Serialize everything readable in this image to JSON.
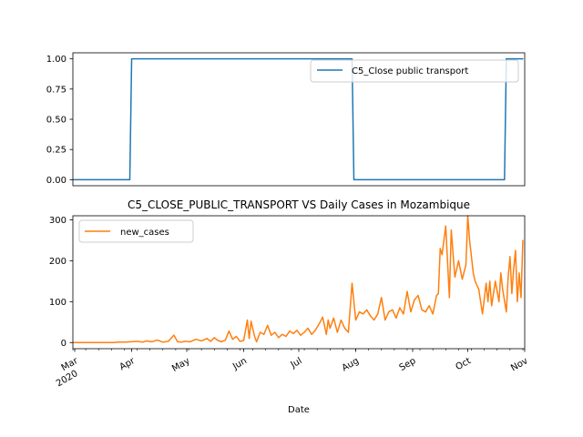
{
  "chart_data": [
    {
      "type": "line",
      "title": "",
      "xlabel": "",
      "ylabel": "",
      "ylim": [
        -0.05,
        1.05
      ],
      "yticks": [
        "0.00",
        "0.25",
        "0.50",
        "0.75",
        "1.00"
      ],
      "legend_position": "upper right",
      "color": "#1f77b4",
      "series": [
        {
          "name": "C5_Close public transport",
          "x": [
            "2020-02-29",
            "2020-03-31",
            "2020-04-01",
            "2020-07-30",
            "2020-07-31",
            "2020-10-21",
            "2020-10-22",
            "2020-10-31"
          ],
          "y": [
            0,
            0,
            1,
            1,
            0,
            0,
            1,
            1
          ]
        }
      ]
    },
    {
      "type": "line",
      "title": "C5_CLOSE_PUBLIC_TRANSPORT VS Daily Cases in Mozambique",
      "xlabel": "Date",
      "ylabel": "",
      "ylim": [
        -15,
        310
      ],
      "yticks": [
        "0",
        "100",
        "200",
        "300"
      ],
      "xtick_labels": [
        {
          "month": "Mar",
          "year": "2020"
        },
        {
          "month": "Apr",
          "year": ""
        },
        {
          "month": "May",
          "year": ""
        },
        {
          "month": "Jun",
          "year": ""
        },
        {
          "month": "Jul",
          "year": ""
        },
        {
          "month": "Aug",
          "year": ""
        },
        {
          "month": "Sep",
          "year": ""
        },
        {
          "month": "Oct",
          "year": ""
        },
        {
          "month": "Nov",
          "year": ""
        }
      ],
      "legend_position": "upper left",
      "color": "#ff7f0e",
      "series": [
        {
          "name": "new_cases",
          "x": [
            "2020-02-29",
            "2020-03-22",
            "2020-03-25",
            "2020-03-28",
            "2020-04-01",
            "2020-04-04",
            "2020-04-07",
            "2020-04-09",
            "2020-04-12",
            "2020-04-15",
            "2020-04-18",
            "2020-04-21",
            "2020-04-24",
            "2020-04-26",
            "2020-04-28",
            "2020-04-30",
            "2020-05-03",
            "2020-05-06",
            "2020-05-09",
            "2020-05-12",
            "2020-05-14",
            "2020-05-16",
            "2020-05-18",
            "2020-05-20",
            "2020-05-22",
            "2020-05-24",
            "2020-05-26",
            "2020-05-28",
            "2020-05-30",
            "2020-06-01",
            "2020-06-03",
            "2020-06-04",
            "2020-06-05",
            "2020-06-07",
            "2020-06-08",
            "2020-06-10",
            "2020-06-12",
            "2020-06-14",
            "2020-06-16",
            "2020-06-18",
            "2020-06-20",
            "2020-06-22",
            "2020-06-24",
            "2020-06-26",
            "2020-06-28",
            "2020-06-30",
            "2020-07-02",
            "2020-07-04",
            "2020-07-06",
            "2020-07-08",
            "2020-07-10",
            "2020-07-12",
            "2020-07-14",
            "2020-07-16",
            "2020-07-17",
            "2020-07-18",
            "2020-07-20",
            "2020-07-22",
            "2020-07-24",
            "2020-07-26",
            "2020-07-28",
            "2020-07-30",
            "2020-08-01",
            "2020-08-03",
            "2020-08-05",
            "2020-08-07",
            "2020-08-09",
            "2020-08-11",
            "2020-08-13",
            "2020-08-15",
            "2020-08-17",
            "2020-08-19",
            "2020-08-21",
            "2020-08-23",
            "2020-08-25",
            "2020-08-27",
            "2020-08-29",
            "2020-08-31",
            "2020-09-02",
            "2020-09-04",
            "2020-09-06",
            "2020-09-08",
            "2020-09-10",
            "2020-09-12",
            "2020-09-14",
            "2020-09-15",
            "2020-09-16",
            "2020-09-17",
            "2020-09-19",
            "2020-09-21",
            "2020-09-22",
            "2020-09-24",
            "2020-09-26",
            "2020-09-28",
            "2020-09-30",
            "2020-10-01",
            "2020-10-02",
            "2020-10-04",
            "2020-10-05",
            "2020-10-07",
            "2020-10-09",
            "2020-10-11",
            "2020-10-12",
            "2020-10-13",
            "2020-10-14",
            "2020-10-16",
            "2020-10-18",
            "2020-10-19",
            "2020-10-20",
            "2020-10-22",
            "2020-10-23",
            "2020-10-24",
            "2020-10-25",
            "2020-10-26",
            "2020-10-27",
            "2020-10-28",
            "2020-10-29",
            "2020-10-30",
            "2020-10-31"
          ],
          "y": [
            0,
            0,
            1,
            1,
            2,
            3,
            1,
            4,
            2,
            6,
            1,
            3,
            18,
            2,
            1,
            3,
            2,
            8,
            4,
            10,
            3,
            12,
            5,
            2,
            6,
            28,
            8,
            15,
            3,
            5,
            55,
            10,
            52,
            14,
            2,
            25,
            20,
            42,
            18,
            25,
            12,
            20,
            15,
            28,
            22,
            30,
            18,
            25,
            35,
            20,
            30,
            45,
            62,
            20,
            55,
            35,
            60,
            25,
            55,
            35,
            25,
            145,
            55,
            75,
            70,
            80,
            65,
            55,
            70,
            110,
            55,
            75,
            80,
            60,
            85,
            70,
            125,
            75,
            105,
            115,
            80,
            75,
            90,
            70,
            115,
            120,
            230,
            215,
            285,
            110,
            275,
            160,
            200,
            155,
            190,
            310,
            250,
            170,
            150,
            130,
            70,
            145,
            100,
            150,
            90,
            150,
            100,
            170,
            130,
            75,
            160,
            210,
            120,
            180,
            225,
            100,
            170,
            110,
            250
          ]
        }
      ]
    }
  ]
}
